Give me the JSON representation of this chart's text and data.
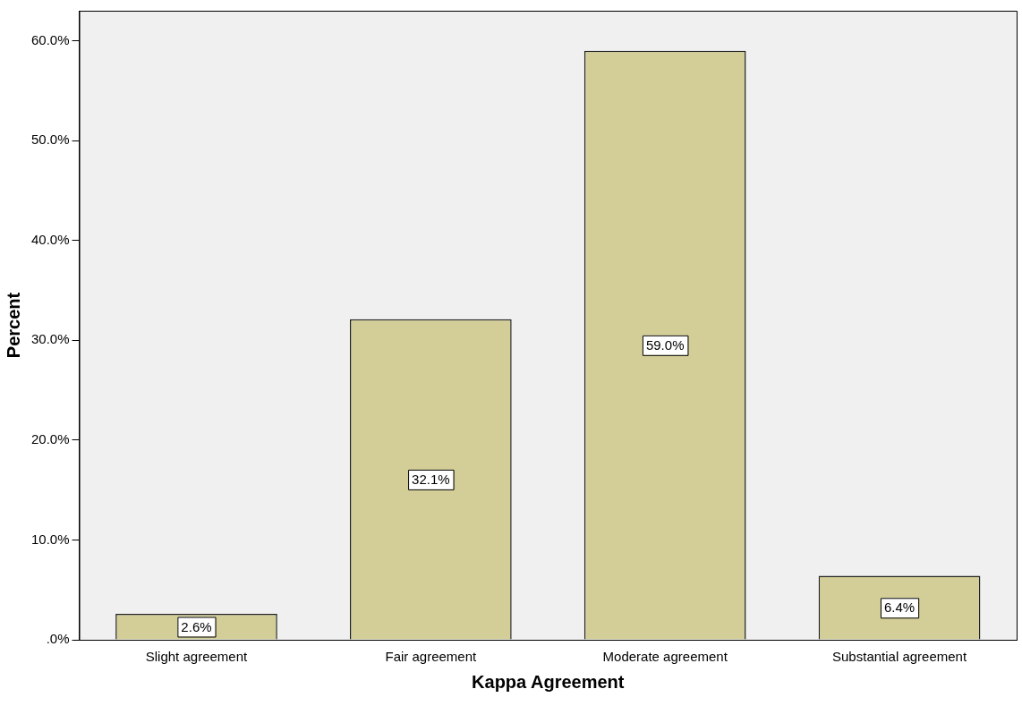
{
  "chart_data": {
    "type": "bar",
    "xlabel": "Kappa Agreement",
    "ylabel": "Percent",
    "categories": [
      "Slight agreement",
      "Fair agreement",
      "Moderate agreement",
      "Substantial agreement"
    ],
    "values": [
      2.6,
      32.1,
      59.0,
      6.4
    ],
    "value_labels": [
      "2.6%",
      "32.1%",
      "59.0%",
      "6.4%"
    ],
    "color": "#d3ce97",
    "ylim": [
      0,
      63
    ],
    "yticks": [
      {
        "value": 0,
        "label": ".0%"
      },
      {
        "value": 10,
        "label": "10.0%"
      },
      {
        "value": 20,
        "label": "20.0%"
      },
      {
        "value": 30,
        "label": "30.0%"
      },
      {
        "value": 40,
        "label": "40.0%"
      },
      {
        "value": 50,
        "label": "50.0%"
      },
      {
        "value": 60,
        "label": "60.0%"
      }
    ],
    "grid": false,
    "legend": false
  }
}
